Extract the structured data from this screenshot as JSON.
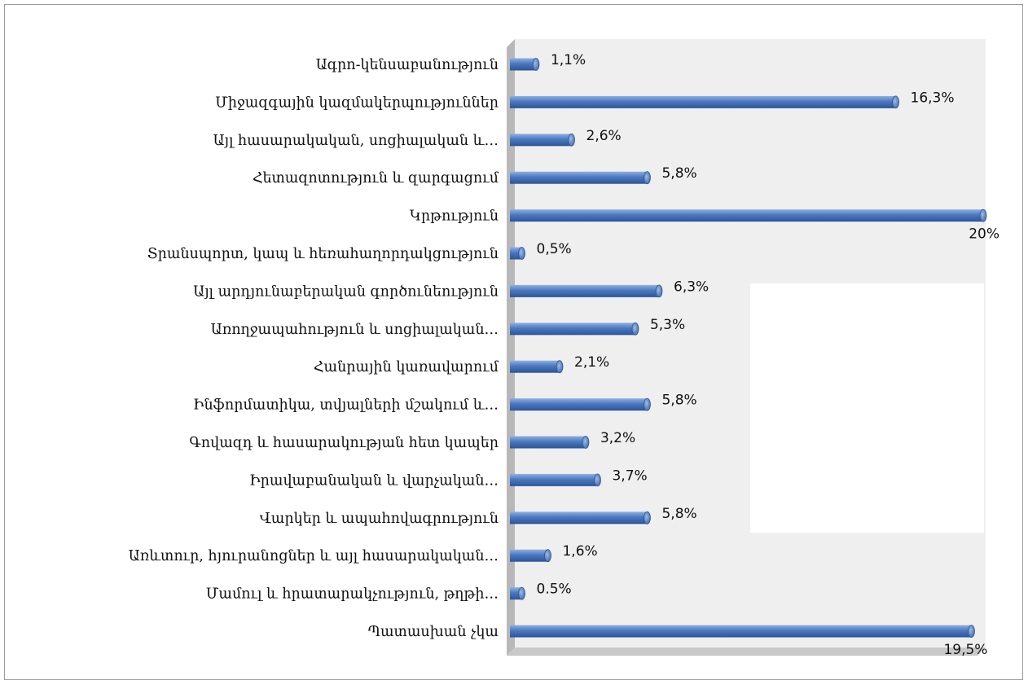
{
  "chart_data": {
    "type": "bar",
    "orientation": "horizontal",
    "title": "",
    "xlabel": "",
    "ylabel": "",
    "xlim": [
      0,
      20
    ],
    "grid": false,
    "legend": "none",
    "bar_color": "#4a78c0",
    "categories": [
      "Ագրո-կենսաբանություն",
      "Միջազգային կազմակերպություններ",
      "Այլ հասարակական, սոցիալական և…",
      "Հետազոտություն և զարգացում",
      "Կրթություն",
      "Տրանսպորտ, կապ և հեռահաղորդակցություն",
      "Այլ արդյունաբերական գործունեություն",
      "Առողջապահություն և սոցիալական…",
      "Հանրային կառավարում",
      "Ինֆորմատիկա, տվյալների մշակում և…",
      "Գովազդ և հասարակության հետ կապեր",
      "Իրավաբանական և վարչական…",
      "Վարկեր և ապահովագրություն",
      "Առևտուր, հյուրանոցներ և այլ հասարակական…",
      "Մամուլ և հրատարակչություն,   թղթի…",
      "Պատասխան չկա"
    ],
    "values": [
      1.1,
      16.3,
      2.6,
      5.8,
      20,
      0.5,
      6.3,
      5.3,
      2.1,
      5.8,
      3.2,
      3.7,
      5.8,
      1.6,
      0.5,
      19.5
    ],
    "data_labels": [
      "1,1%",
      "16,3%",
      "2,6%",
      "5,8%",
      "20%",
      "0,5%",
      "6,3%",
      "5,3%",
      "2,1%",
      "5,8%",
      "3,2%",
      "3,7%",
      "5,8%",
      "1,6%",
      "0.5%",
      "19,5%"
    ]
  }
}
